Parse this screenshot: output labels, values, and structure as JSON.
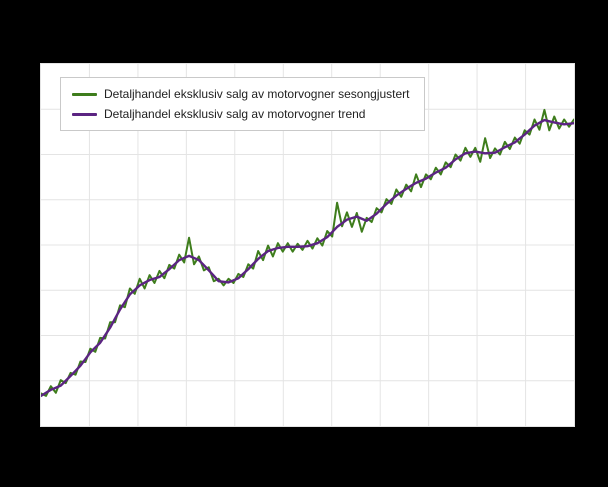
{
  "colors": {
    "page_background": "#000000",
    "plot_background": "#ffffff",
    "seasonally_adjusted_line": "#3e7d1c",
    "trend_line": "#5b2482"
  },
  "chart_data": {
    "type": "line",
    "title": "",
    "xlabel": "",
    "ylabel": "",
    "x_labels_visible": false,
    "y_labels_visible": false,
    "legend_position": "top-left-inside",
    "ylim": [
      74.5,
      134.5
    ],
    "grid": {
      "on": true,
      "color": "#e4e4e4",
      "v_lines": 10,
      "h_lines": 7
    },
    "series": [
      {
        "name": "Detaljhandel eksklusiv salg av motorvogner sesongjustert",
        "color": "#3e7d1c",
        "width": 2,
        "values": [
          79.9,
          79.5,
          81.1,
          80.0,
          82.1,
          81.6,
          83.3,
          83.0,
          85.2,
          85.1,
          87.3,
          86.8,
          89.1,
          89.0,
          91.7,
          91.7,
          94.5,
          94.2,
          97.3,
          96.4,
          98.9,
          97.3,
          99.5,
          98.2,
          100.2,
          99.0,
          101.2,
          100.6,
          102.9,
          101.6,
          105.7,
          101.3,
          102.6,
          100.3,
          100.8,
          98.5,
          98.9,
          97.8,
          98.9,
          98.2,
          99.7,
          99.2,
          101.3,
          100.6,
          103.5,
          102.0,
          104.4,
          102.6,
          104.8,
          103.4,
          104.8,
          103.4,
          104.7,
          103.7,
          105.2,
          103.9,
          105.6,
          104.4,
          106.8,
          105.9,
          111.5,
          107.6,
          109.9,
          107.5,
          109.8,
          106.7,
          109.0,
          108.3,
          110.6,
          109.9,
          112.1,
          111.3,
          113.7,
          112.5,
          114.5,
          113.4,
          116.2,
          114.1,
          116.2,
          115.4,
          117.3,
          116.2,
          118.2,
          117.4,
          119.5,
          118.5,
          120.6,
          119.1,
          120.6,
          118.3,
          122.2,
          118.9,
          120.5,
          119.5,
          121.6,
          120.4,
          122.3,
          121.3,
          123.5,
          122.8,
          125.3,
          123.6,
          126.9,
          123.5,
          125.8,
          123.8,
          125.3,
          124.1,
          125.3
        ]
      },
      {
        "name": "Detaljhandel eksklusiv salg av motorvogner trend",
        "color": "#5b2482",
        "width": 2.4,
        "values": [
          79.5,
          80.0,
          80.5,
          80.85,
          81.2,
          82.0,
          82.8,
          83.65,
          84.5,
          85.6,
          86.7,
          87.5,
          88.3,
          89.55,
          90.8,
          92.3,
          93.8,
          95.05,
          96.3,
          97.05,
          97.8,
          98.25,
          98.7,
          98.95,
          99.2,
          99.85,
          100.5,
          101.25,
          102.0,
          102.35,
          102.7,
          102.35,
          102.0,
          101.15,
          100.3,
          99.4,
          98.5,
          98.4,
          98.3,
          98.65,
          99.0,
          99.75,
          100.5,
          101.35,
          102.2,
          102.85,
          103.5,
          103.75,
          104.0,
          104.1,
          104.2,
          104.2,
          104.2,
          104.25,
          104.3,
          104.55,
          104.8,
          105.3,
          105.8,
          106.65,
          107.5,
          108.1,
          108.7,
          108.95,
          109.2,
          108.85,
          108.5,
          109.1,
          109.7,
          110.5,
          111.3,
          112.0,
          112.7,
          113.25,
          113.8,
          114.3,
          114.8,
          115.15,
          115.5,
          116.0,
          116.5,
          116.9,
          117.3,
          118.0,
          118.7,
          119.2,
          119.7,
          119.85,
          120.0,
          119.85,
          119.7,
          119.75,
          119.8,
          120.25,
          120.7,
          121.1,
          121.5,
          122.15,
          122.8,
          123.55,
          124.3,
          124.75,
          125.2,
          125.0,
          124.8,
          124.65,
          124.5,
          124.6,
          124.7
        ]
      }
    ]
  }
}
